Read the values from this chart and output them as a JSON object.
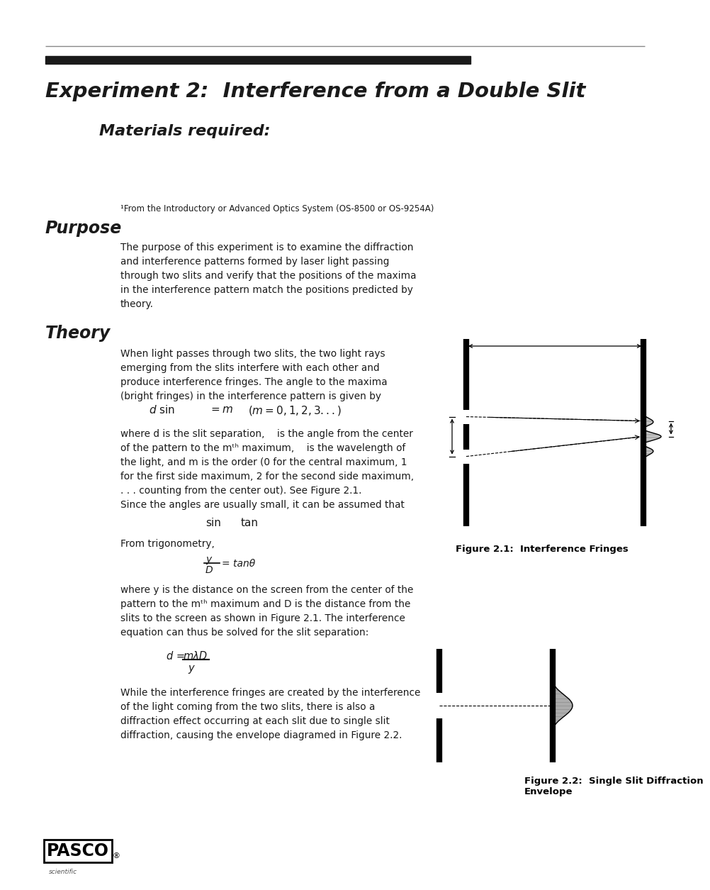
{
  "title": "Experiment 2:  Interference from a Double Slit",
  "subtitle": "Materials required:",
  "footnote": "¹From the Introductory or Advanced Optics System (OS-8500 or OS-9254A)",
  "purpose_title": "Purpose",
  "purpose_text": "The purpose of this experiment is to examine the diffraction\nand interference patterns formed by laser light passing\nthrough two slits and verify that the positions of the maxima\nin the interference pattern match the positions predicted by\ntheory.",
  "theory_title": "Theory",
  "theory_text1": "When light passes through two slits, the two light rays\nemerging from the slits interfere with each other and\nproduce interference fringes. The angle to the maxima\n(bright fringes) in the interference pattern is given by",
  "theory_text2": "where d is the slit separation,    is the angle from the center\nof the pattern to the mᵗʰ maximum,    is the wavelength of\nthe light, and m is the order (0 for the central maximum, 1\nfor the first side maximum, 2 for the second side maximum,\n. . . counting from the center out). See Figure 2.1.",
  "theory_text3": "Since the angles are usually small, it can be assumed that",
  "theory_text4": "From trigonometry,",
  "theory_text5": "where y is the distance on the screen from the center of the\npattern to the mᵗʰ maximum and D is the distance from the\nslits to the screen as shown in Figure 2.1. The interference\nequation can thus be solved for the slit separation:",
  "theory_text6": "While the interference fringes are created by the interference\nof the light coming from the two slits, there is also a\ndiffraction effect occurring at each slit due to single slit\ndiffraction, causing the envelope diagramed in Figure 2.2.",
  "fig1_caption": "Figure 2.1:  Interference Fringes",
  "fig2_caption": "Figure 2.2:  Single Slit Diffraction\nEnvelope",
  "bg_color": "#ffffff",
  "text_color": "#1a1a1a",
  "header_bar_color": "#1a1a1a"
}
